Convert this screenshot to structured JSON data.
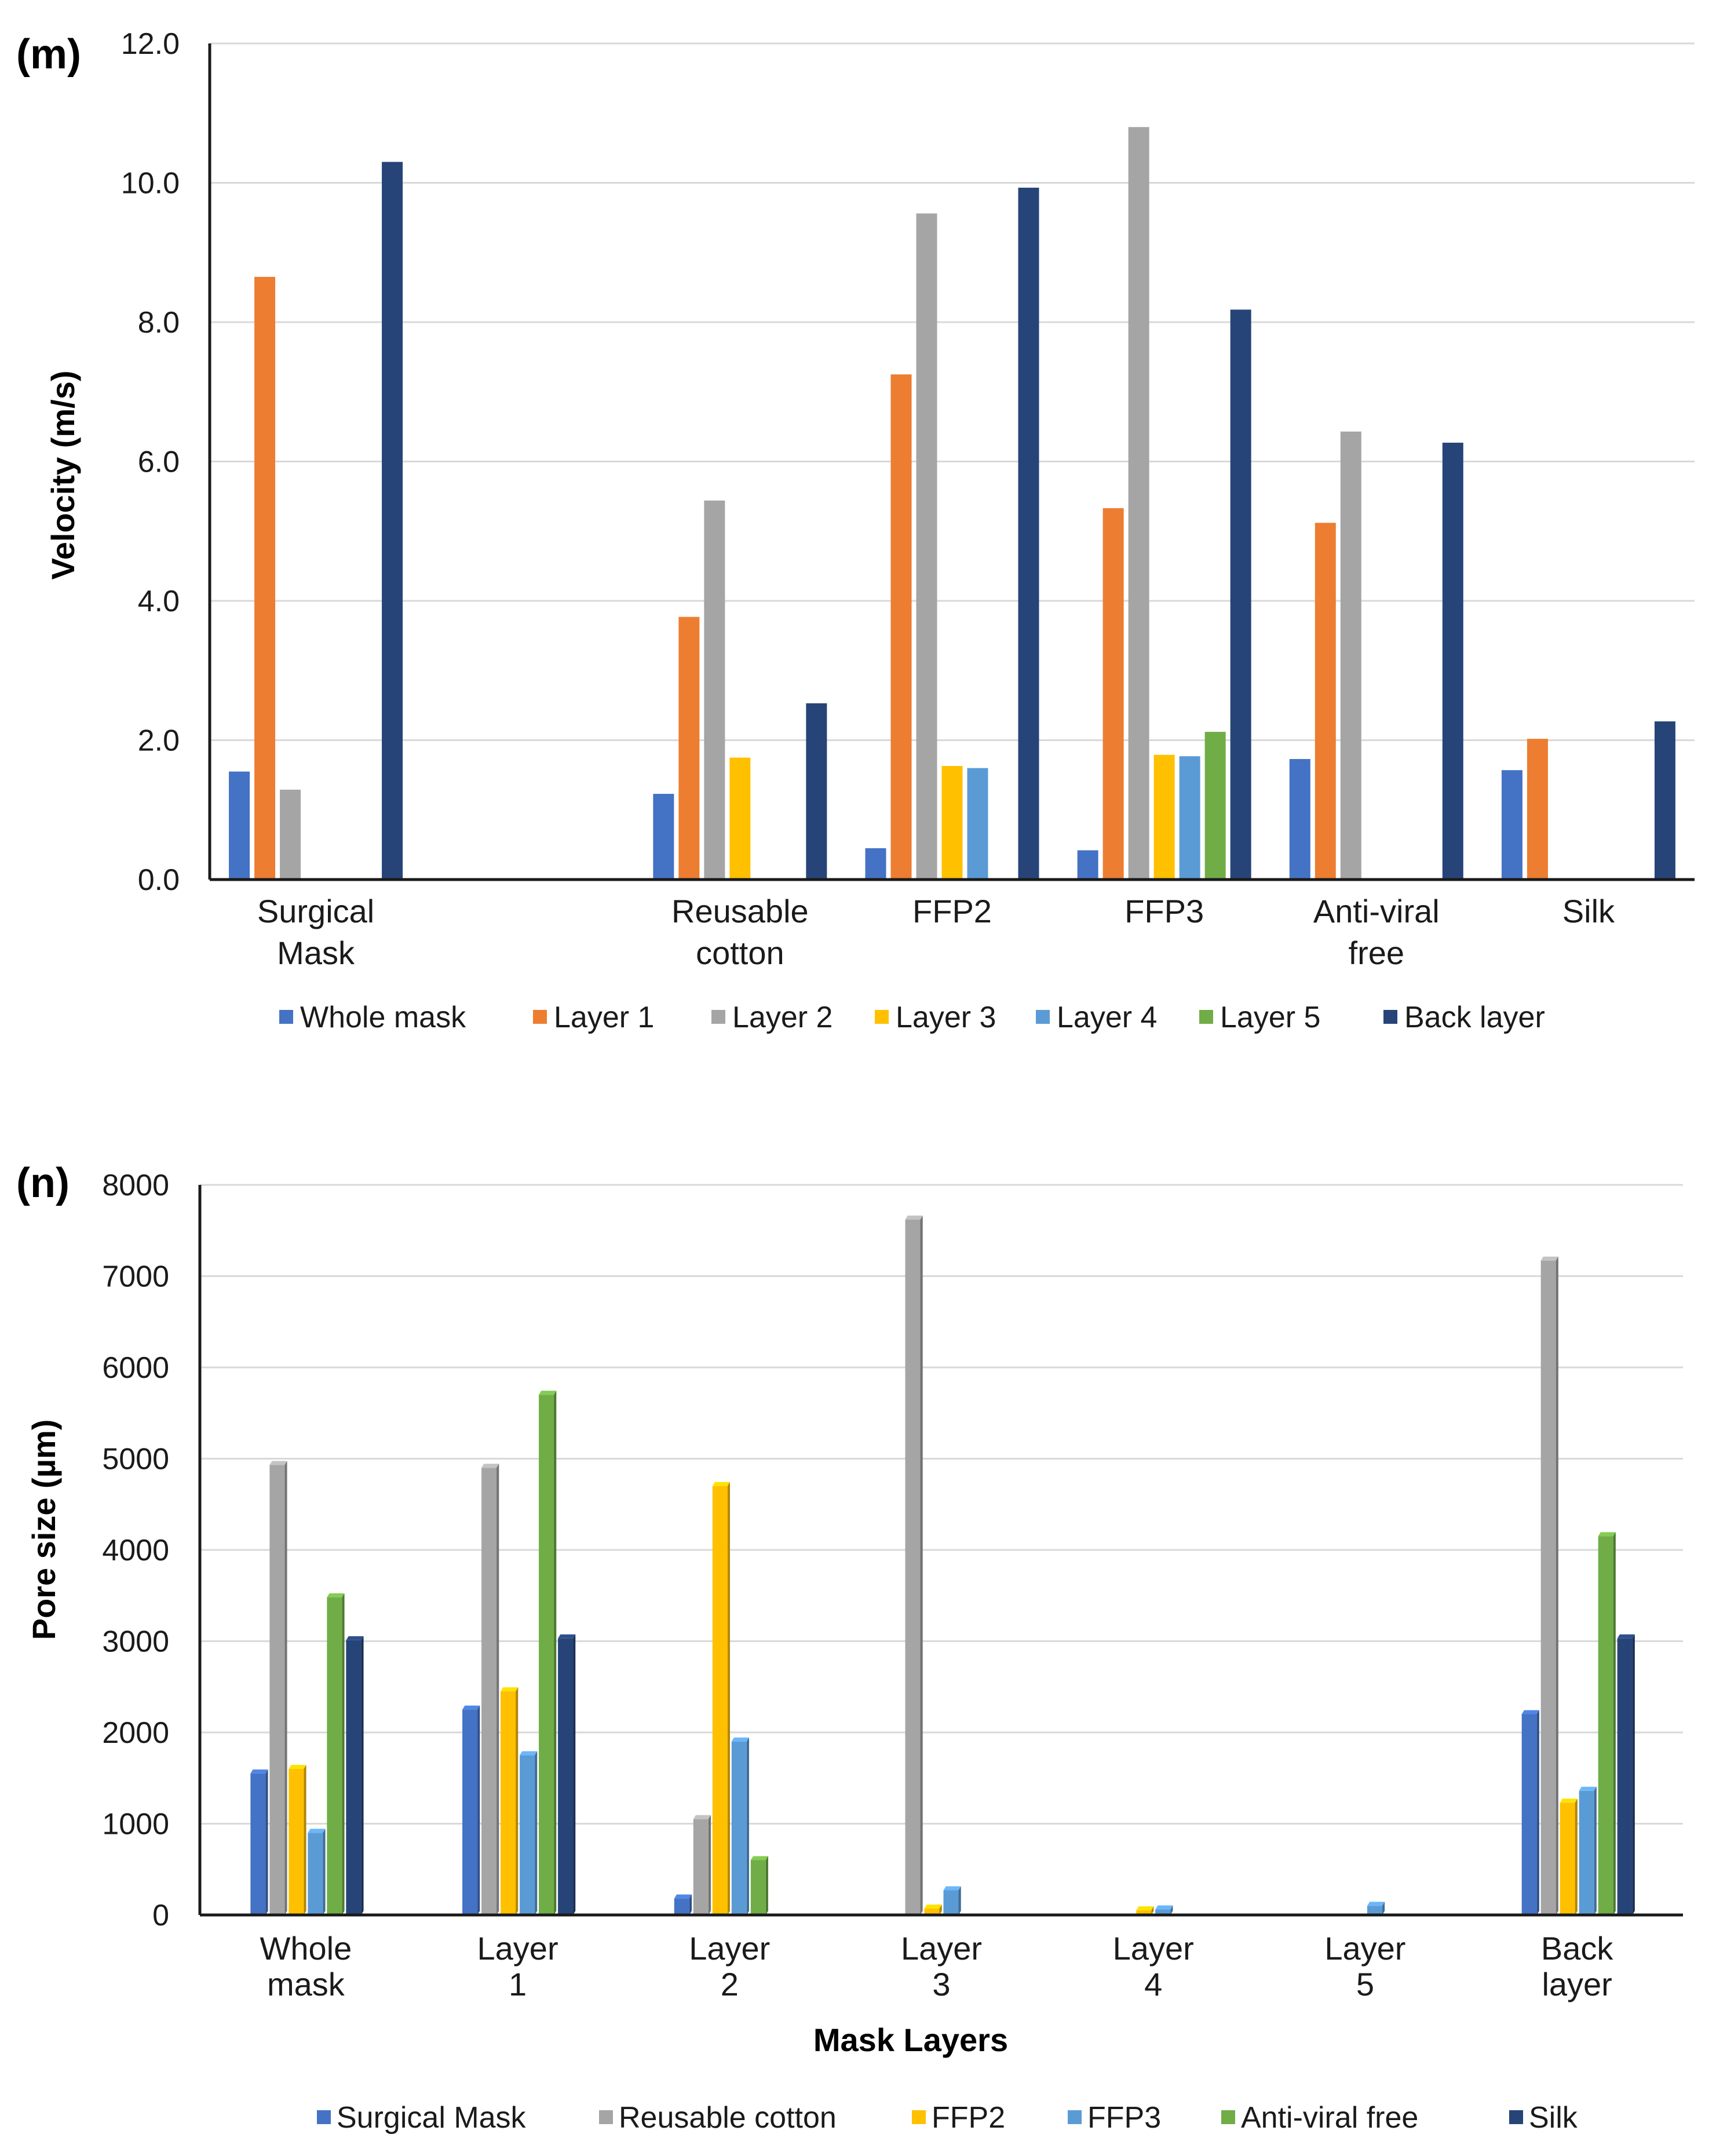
{
  "chart_data": [
    {
      "type": "bar",
      "panel_label": "(m)",
      "ylabel": "Velocity (m/s)",
      "xlabel": "",
      "ylim": [
        0,
        12
      ],
      "yticks": [
        "0.0",
        "2.0",
        "4.0",
        "6.0",
        "8.0",
        "10.0",
        "12.0"
      ],
      "grid": true,
      "legend_position": "bottom",
      "categories": [
        [
          "Surgical",
          "Mask"
        ],
        [
          "",
          ""
        ],
        [
          "Reusable",
          "cotton"
        ],
        [
          "FFP2",
          ""
        ],
        [
          "FFP3",
          ""
        ],
        [
          "Anti-viral",
          "free"
        ],
        [
          "Silk",
          ""
        ]
      ],
      "series": [
        {
          "name": "Whole mask",
          "color": "#4472c4",
          "values": [
            1.55,
            null,
            1.23,
            0.45,
            0.42,
            1.73,
            1.57
          ]
        },
        {
          "name": "Layer 1",
          "color": "#ed7d31",
          "values": [
            8.65,
            null,
            3.77,
            7.25,
            5.33,
            5.12,
            2.02
          ]
        },
        {
          "name": "Layer 2",
          "color": "#a5a5a5",
          "values": [
            1.29,
            null,
            5.44,
            9.56,
            10.8,
            6.43,
            null
          ]
        },
        {
          "name": "Layer 3",
          "color": "#ffc000",
          "values": [
            null,
            null,
            1.75,
            1.63,
            1.79,
            null,
            null
          ]
        },
        {
          "name": "Layer 4",
          "color": "#5b9bd5",
          "values": [
            null,
            null,
            null,
            1.6,
            1.77,
            null,
            null
          ]
        },
        {
          "name": "Layer 5",
          "color": "#70ad47",
          "values": [
            null,
            null,
            null,
            null,
            2.12,
            null,
            null
          ]
        },
        {
          "name": "Back layer",
          "color": "#264478",
          "values": [
            10.3,
            null,
            2.53,
            9.93,
            8.18,
            6.27,
            2.27
          ]
        }
      ]
    },
    {
      "type": "bar",
      "panel_label": "(n)",
      "ylabel": "Pore size (µm)",
      "xlabel": "Mask Layers",
      "ylim": [
        0,
        8000
      ],
      "yticks": [
        "0",
        "1000",
        "2000",
        "3000",
        "4000",
        "5000",
        "6000",
        "7000",
        "8000"
      ],
      "grid": true,
      "legend_position": "bottom",
      "categories": [
        [
          "Whole",
          "mask"
        ],
        [
          "Layer",
          "1"
        ],
        [
          "Layer",
          "2"
        ],
        [
          "Layer",
          "3"
        ],
        [
          "Layer",
          "4"
        ],
        [
          "Layer",
          "5"
        ],
        [
          "Back",
          "layer"
        ]
      ],
      "series": [
        {
          "name": "Surgical Mask",
          "color": "#4472c4",
          "values": [
            1550,
            2250,
            180,
            null,
            null,
            null,
            2200
          ]
        },
        {
          "name": "Reusable cotton",
          "color": "#a5a5a5",
          "values": [
            4930,
            4900,
            1050,
            7620,
            null,
            null,
            7170
          ]
        },
        {
          "name": "FFP2",
          "color": "#ffc000",
          "values": [
            1600,
            2450,
            4700,
            70,
            50,
            null,
            1230
          ]
        },
        {
          "name": "FFP3",
          "color": "#5b9bd5",
          "values": [
            900,
            1750,
            1900,
            270,
            60,
            100,
            1360
          ]
        },
        {
          "name": "Anti-viral free",
          "color": "#70ad47",
          "values": [
            3480,
            5700,
            600,
            null,
            null,
            null,
            4150
          ]
        },
        {
          "name": "Silk",
          "color": "#264478",
          "values": [
            3010,
            3030,
            null,
            null,
            null,
            null,
            3030
          ]
        }
      ]
    }
  ]
}
